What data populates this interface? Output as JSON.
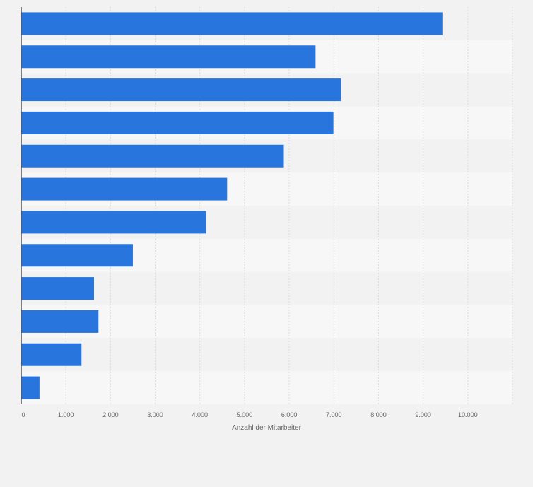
{
  "chart_data": {
    "type": "bar",
    "orientation": "horizontal",
    "categories": [
      "",
      "",
      "",
      "",
      "",
      "",
      "",
      "",
      "",
      "",
      "",
      ""
    ],
    "values": [
      9430,
      6590,
      7160,
      6990,
      5880,
      4610,
      4140,
      2500,
      1630,
      1730,
      1350,
      410
    ],
    "xlabel": "Anzahl der Mitarbeiter",
    "ylabel": "",
    "xlim": [
      0,
      11000
    ],
    "xticks": [
      0,
      1000,
      2000,
      3000,
      4000,
      5000,
      6000,
      7000,
      8000,
      9000,
      10000
    ],
    "xtick_labels": [
      "0",
      "1.000",
      "2.000",
      "3.000",
      "4.000",
      "5.000",
      "6.000",
      "7.000",
      "8.000",
      "9.000",
      "10.000"
    ],
    "grid": true,
    "bar_color": "#2876dd"
  }
}
